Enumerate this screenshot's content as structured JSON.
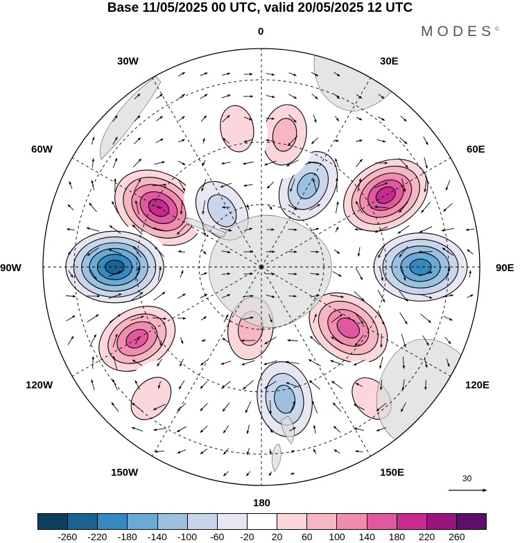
{
  "title": "Base 11/05/2025 00 UTC, valid 20/05/2025 12 UTC",
  "brand": "MODES",
  "brand_mark": "©",
  "longitude_labels": [
    "0",
    "30E",
    "60E",
    "90E",
    "120E",
    "150E",
    "180",
    "150W",
    "120W",
    "90W",
    "60W",
    "30W"
  ],
  "vector_scale_label": "30",
  "colorbar": {
    "colors": [
      "#0f3f5f",
      "#1c6293",
      "#3689be",
      "#6aaad5",
      "#9cc1e0",
      "#c9d5ea",
      "#e7e6f2",
      "#ffffff",
      "#fbd7db",
      "#f6b6c2",
      "#f08cb0",
      "#e0589e",
      "#c82b8f",
      "#9a1480",
      "#5e0f6b"
    ],
    "ticks": [
      "-260",
      "-220",
      "-180",
      "-140",
      "-100",
      "-60",
      "-20",
      "20",
      "60",
      "100",
      "140",
      "180",
      "220",
      "260"
    ]
  },
  "anomalies": [
    {
      "lon": -60,
      "colat": 38,
      "value": 230
    },
    {
      "lon": -90,
      "colat": 47,
      "value": -245
    },
    {
      "lon": -120,
      "colat": 46,
      "value": 160
    },
    {
      "lon": 60,
      "colat": 46,
      "value": 200
    },
    {
      "lon": 90,
      "colat": 51,
      "value": -230
    },
    {
      "lon": 125,
      "colat": 34,
      "value": 190
    },
    {
      "lon": 170,
      "colat": 43,
      "value": -150
    },
    {
      "lon": -170,
      "colat": 20,
      "value": 100
    },
    {
      "lon": 30,
      "colat": 30,
      "value": -130
    },
    {
      "lon": -35,
      "colat": 22,
      "value": -110
    },
    {
      "lon": 10,
      "colat": 43,
      "value": 80
    },
    {
      "lon": -10,
      "colat": 45,
      "value": 60
    },
    {
      "lon": -140,
      "colat": 55,
      "value": 70
    },
    {
      "lon": 140,
      "colat": 55,
      "value": 60
    }
  ]
}
